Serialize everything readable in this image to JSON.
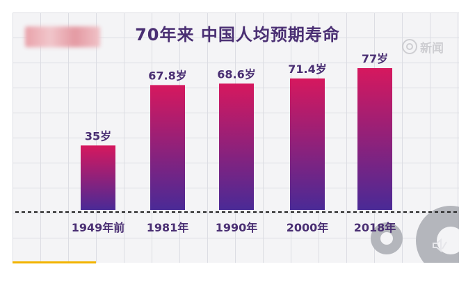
{
  "chart_data": {
    "type": "bar",
    "title": "70年来 中国人均预期寿命",
    "categories": [
      "1949年前",
      "1981年",
      "1990年",
      "2000年",
      "2018年"
    ],
    "values": [
      35,
      67.8,
      68.6,
      71.4,
      77
    ],
    "data_labels": [
      "35岁",
      "67.8岁",
      "68.6岁",
      "71.4岁",
      "77岁"
    ],
    "ylim": [
      0,
      77
    ],
    "grid": true,
    "colors": {
      "bar_top": "#d6185e",
      "bar_bottom": "#4a2a96",
      "text": "#4a2f73",
      "baseline": "#222222"
    }
  },
  "watermark": {
    "text": "新闻",
    "icon": "weibo-eye-icon"
  },
  "controls": {
    "volume_icon": "speaker-muted-icon"
  }
}
